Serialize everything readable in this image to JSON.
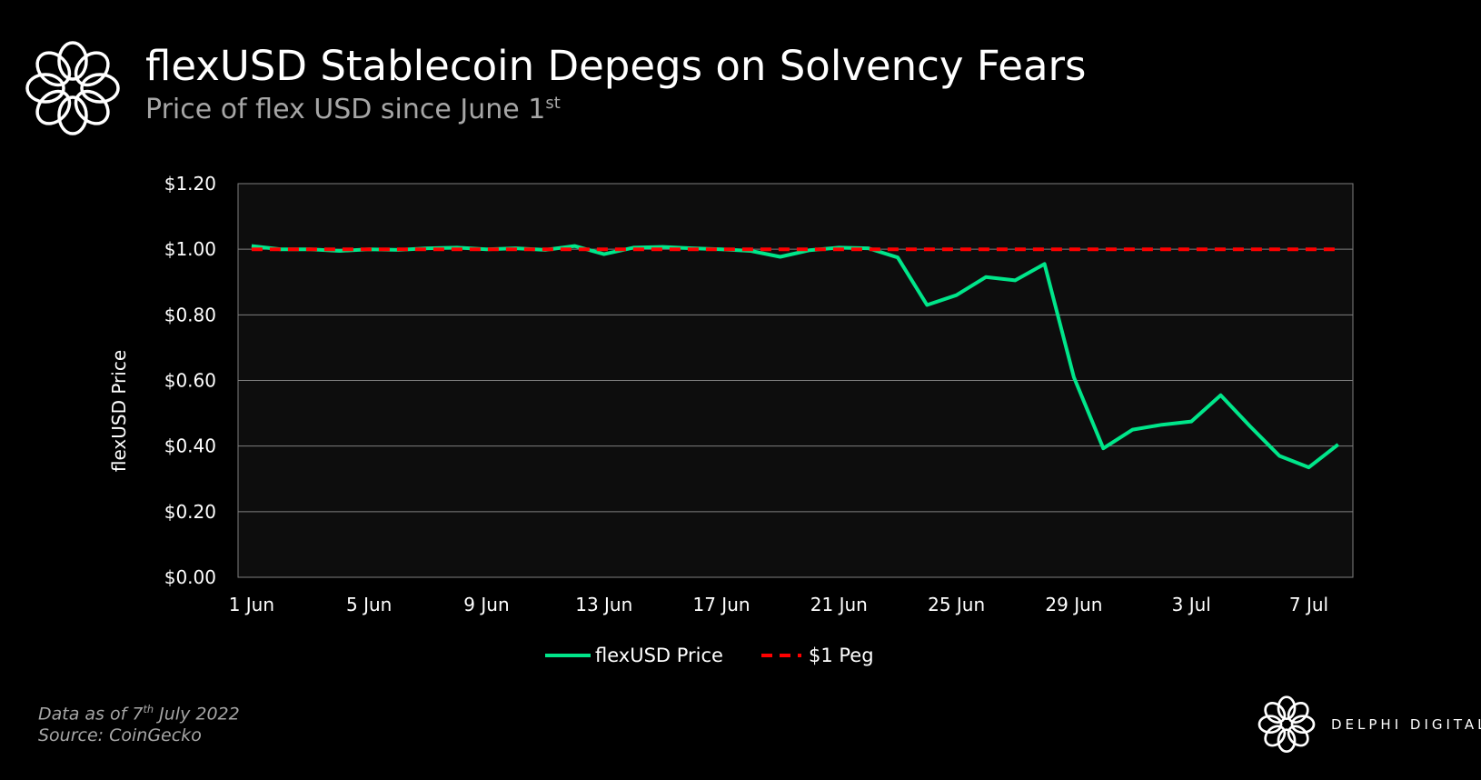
{
  "header": {
    "title": "flexUSD Stablecoin Depegs on Solvency Fears",
    "subtitle": "Price of flex USD since June 1",
    "subtitle_sup": "st",
    "logo_icon": "delphi-knot-logo"
  },
  "footer": {
    "data_as_of_prefix": "Data as of 7",
    "data_as_of_sup": "th",
    "data_as_of_suffix": " July 2022",
    "source": "Source: CoinGecko",
    "brand": "DELPHI DIGITAL"
  },
  "colors": {
    "background": "#000000",
    "plot_background": "#0d0d0d",
    "price_line": "#00e68a",
    "peg_line": "#ff0000",
    "grid": "#7f7f7f"
  },
  "chart_data": {
    "type": "line",
    "title": "flexUSD Stablecoin Depegs on Solvency Fears",
    "subtitle": "Price of flex USD since June 1st",
    "xlabel": "",
    "ylabel": "flexUSD Price",
    "ylim": [
      0,
      1.2
    ],
    "yticks": [
      "$0.00",
      "$0.20",
      "$0.40",
      "$0.60",
      "$0.80",
      "$1.00",
      "$1.20"
    ],
    "xticks": [
      "1 Jun",
      "5 Jun",
      "9 Jun",
      "13 Jun",
      "17 Jun",
      "21 Jun",
      "25 Jun",
      "29 Jun",
      "3 Jul",
      "7 Jul"
    ],
    "grid": true,
    "legend": "bottom",
    "x": [
      "1 Jun",
      "2 Jun",
      "3 Jun",
      "4 Jun",
      "5 Jun",
      "6 Jun",
      "7 Jun",
      "8 Jun",
      "9 Jun",
      "10 Jun",
      "11 Jun",
      "12 Jun",
      "13 Jun",
      "14 Jun",
      "15 Jun",
      "16 Jun",
      "17 Jun",
      "18 Jun",
      "19 Jun",
      "20 Jun",
      "21 Jun",
      "22 Jun",
      "23 Jun",
      "24 Jun",
      "25 Jun",
      "26 Jun",
      "27 Jun",
      "28 Jun",
      "29 Jun",
      "30 Jun",
      "1 Jul",
      "2 Jul",
      "3 Jul",
      "4 Jul",
      "5 Jul",
      "6 Jul",
      "7 Jul",
      "8 Jul"
    ],
    "series": [
      {
        "name": "flexUSD Price",
        "style": "solid",
        "color": "#00e68a",
        "values": [
          1.01,
          1.0,
          1.0,
          0.995,
          1.0,
          0.998,
          1.003,
          1.005,
          1.0,
          1.003,
          0.998,
          1.01,
          0.985,
          1.005,
          1.007,
          1.003,
          1.0,
          0.995,
          0.977,
          0.997,
          1.005,
          1.003,
          0.975,
          0.83,
          0.86,
          0.915,
          0.905,
          0.955,
          0.61,
          0.393,
          0.45,
          0.465,
          0.475,
          0.555,
          0.46,
          0.37,
          0.335,
          0.405
        ]
      },
      {
        "name": "$1 Peg",
        "style": "dashed",
        "color": "#ff0000",
        "values": [
          1,
          1,
          1,
          1,
          1,
          1,
          1,
          1,
          1,
          1,
          1,
          1,
          1,
          1,
          1,
          1,
          1,
          1,
          1,
          1,
          1,
          1,
          1,
          1,
          1,
          1,
          1,
          1,
          1,
          1,
          1,
          1,
          1,
          1,
          1,
          1,
          1,
          1
        ]
      }
    ]
  }
}
